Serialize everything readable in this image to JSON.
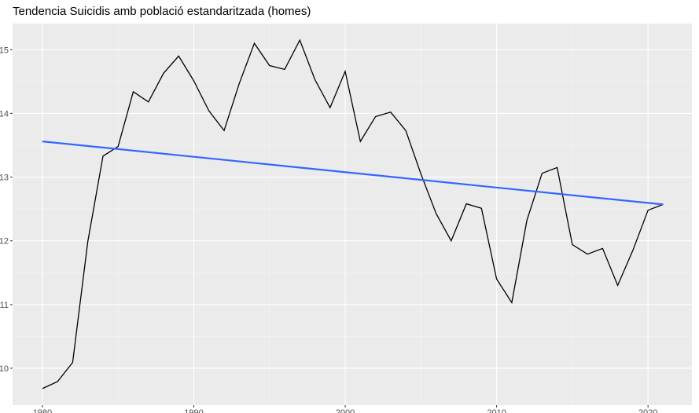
{
  "chart_data": {
    "type": "line",
    "title": "Tendencia Suicidis amb població estandaritzada (homes)",
    "series": [
      {
        "color": "#000000",
        "x": [
          1980,
          1981,
          1982,
          1983,
          1984,
          1985,
          1986,
          1987,
          1988,
          1989,
          1990,
          1991,
          1992,
          1993,
          1994,
          1995,
          1996,
          1997,
          1998,
          1999,
          2000,
          2001,
          2002,
          2003,
          2004,
          2005,
          2006,
          2007,
          2008,
          2009,
          2010,
          2011,
          2012,
          2013,
          2014,
          2015,
          2016,
          2017,
          2018,
          2019,
          2020,
          2021
        ],
        "values": [
          9.68,
          9.79,
          10.09,
          11.99,
          13.33,
          13.48,
          14.34,
          14.18,
          14.63,
          14.9,
          14.51,
          14.04,
          13.73,
          14.47,
          15.1,
          14.75,
          14.69,
          15.15,
          14.53,
          14.09,
          14.66,
          13.56,
          13.95,
          14.02,
          13.73,
          13.05,
          12.43,
          12.0,
          12.58,
          12.51,
          11.4,
          11.03,
          12.32,
          13.06,
          13.15,
          11.94,
          11.79,
          11.88,
          11.3,
          11.85,
          12.48,
          12.57
        ]
      },
      {
        "color": "#3366ff",
        "x": [
          1980,
          2021
        ],
        "values": [
          13.56,
          12.57
        ]
      }
    ],
    "xlim": [
      1978.03,
      2022.9
    ],
    "xticks": [
      1980,
      1990,
      2000,
      2010,
      2020
    ],
    "ylim": [
      9.42,
      15.41
    ],
    "yticks": [
      10,
      11,
      12,
      13,
      14,
      15
    ],
    "grid": true
  }
}
